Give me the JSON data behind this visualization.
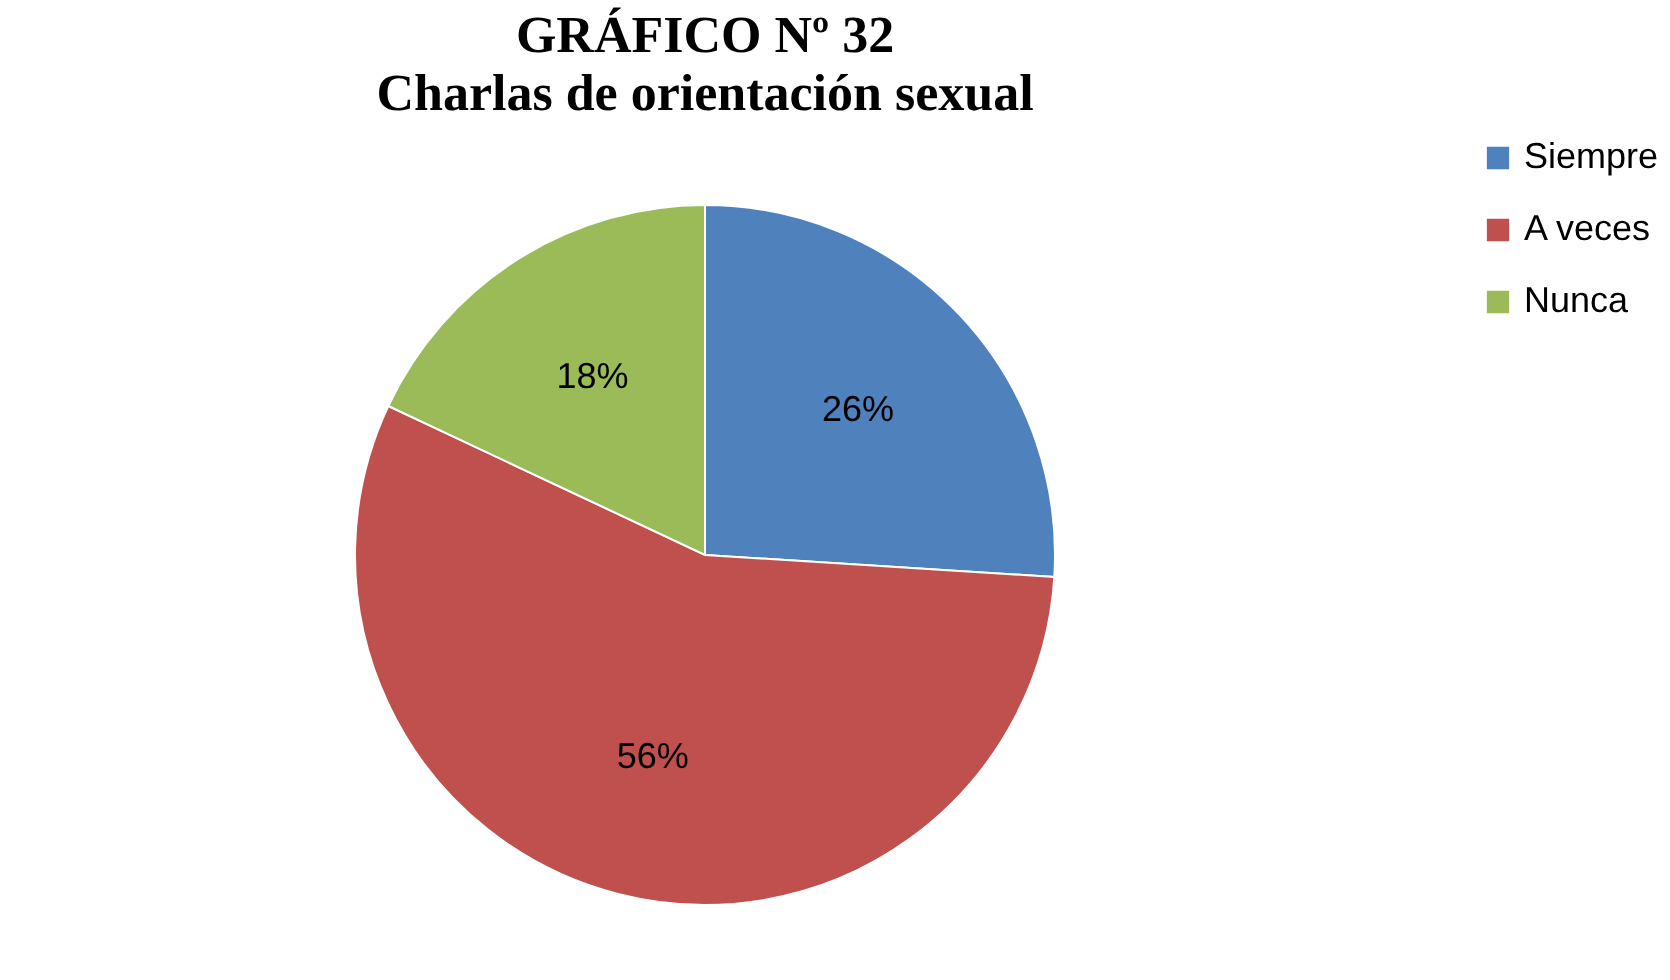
{
  "chart_data": {
    "type": "pie",
    "title": "GRÁFICO  Nº 32",
    "subtitle": "Charlas de orientación sexual",
    "categories": [
      "Siempre",
      "A veces",
      "Nunca"
    ],
    "values": [
      26,
      56,
      18
    ],
    "colors": [
      "#4f81bd",
      "#c0504d",
      "#9bbb59"
    ],
    "value_labels": [
      "26%",
      "56%",
      "18%"
    ],
    "legend": "right"
  }
}
